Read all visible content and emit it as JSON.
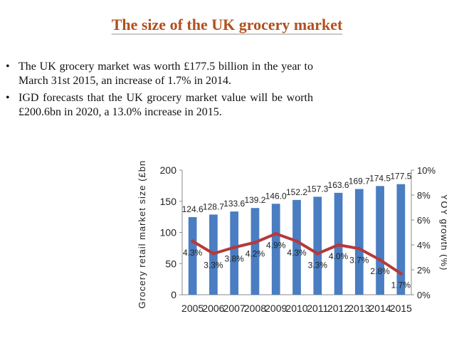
{
  "title": "The size of the UK grocery market",
  "bullets": [
    "The UK grocery market was worth £177.5 billion in the year to March 31st 2015, an increase of 1.7% in 2014.",
    "IGD forecasts that the UK grocery market value will be worth £200.6bn in 2020, a 13.0% increase in 2015."
  ],
  "bullet_marker": "•",
  "chart_data": {
    "type": "bar",
    "categories": [
      "2005",
      "2006",
      "2007",
      "2008",
      "2009",
      "2010",
      "2011",
      "2012",
      "2013",
      "2014",
      "2015"
    ],
    "series": [
      {
        "name": "",
        "type": "bar",
        "axis": "left",
        "color": "#4a7dc1",
        "values": [
          124.6,
          128.7,
          133.6,
          139.2,
          146.0,
          152.2,
          157.3,
          163.6,
          169.7,
          174.5,
          177.5
        ],
        "labels": [
          "124.6",
          "128.7",
          "133.6",
          "139.2",
          "146.0",
          "152.2",
          "157.3",
          "163.6",
          "169.7",
          "174.5",
          "177.5"
        ]
      },
      {
        "name": "",
        "type": "line",
        "axis": "right",
        "color": "#b5393c",
        "values": [
          4.3,
          3.3,
          3.8,
          4.2,
          4.9,
          4.3,
          3.3,
          4.0,
          3.7,
          2.8,
          1.7
        ],
        "labels": [
          "4.3%",
          "3.3%",
          "3.8%",
          "4.2%",
          "4.9%",
          "4.3%",
          "3.3%",
          "4.0%",
          "3.7%",
          "2.8%",
          "1.7%"
        ]
      }
    ],
    "ylabel": "Grocery retail market size (£bn)",
    "y2label": "YOY growth (%)",
    "ylim": [
      0,
      200
    ],
    "y2lim": [
      0,
      10
    ],
    "yticks": [
      "0",
      "50",
      "100",
      "150",
      "200"
    ],
    "y2ticks": [
      "0%",
      "2%",
      "4%",
      "6%",
      "8%",
      "10%"
    ],
    "grid": false,
    "legend": "none"
  }
}
